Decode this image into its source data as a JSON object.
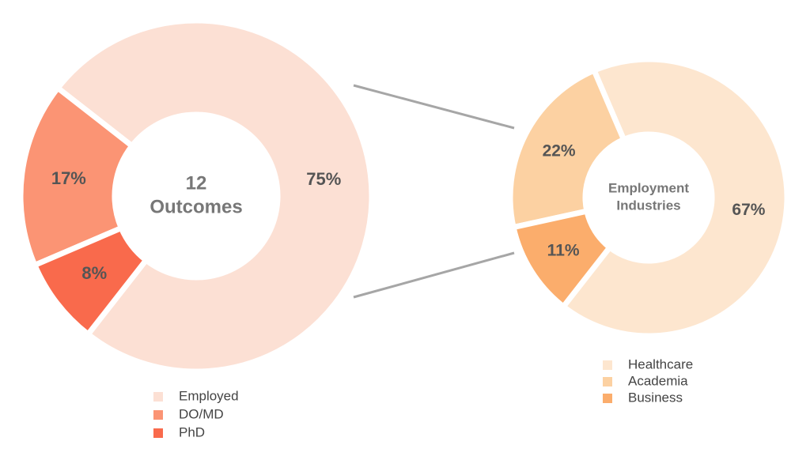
{
  "chart_data": [
    {
      "type": "pie",
      "center_text": [
        "12",
        "Outcomes"
      ],
      "categories": [
        "Employed",
        "DO/MD",
        "PhD"
      ],
      "values": [
        75,
        17,
        8
      ],
      "value_labels": [
        "75%",
        "17%",
        "8%"
      ],
      "colors": [
        "#fce0d4",
        "#fb9474",
        "#f96a4c"
      ]
    },
    {
      "type": "pie",
      "center_text": [
        "Employment",
        "Industries"
      ],
      "categories": [
        "Healthcare",
        "Academia",
        "Business"
      ],
      "values": [
        67,
        22,
        11
      ],
      "value_labels": [
        "67%",
        "22%",
        "11%"
      ],
      "colors": [
        "#fde6cf",
        "#fcd1a2",
        "#fbad6c"
      ]
    }
  ]
}
